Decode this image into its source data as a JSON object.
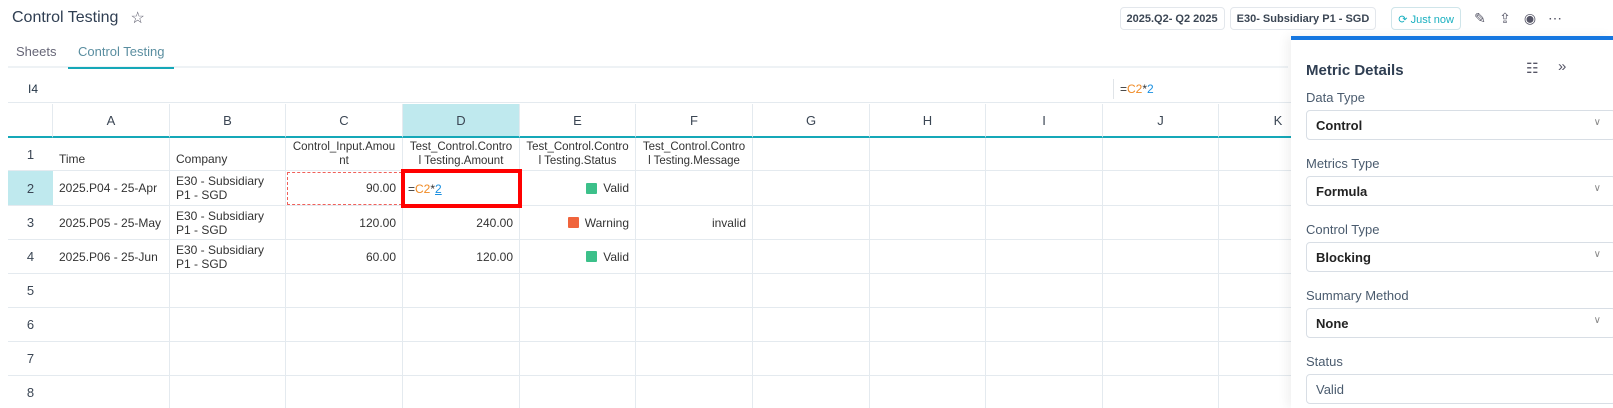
{
  "header": {
    "title": "Control Testing",
    "period": "2025.Q2- Q2 2025",
    "entity": "E30- Subsidiary P1 - SGD",
    "sync_label": "Just now"
  },
  "tabs": [
    {
      "label": "Sheets"
    },
    {
      "label": "Control Testing",
      "active": true
    }
  ],
  "formula_bar": {
    "cell_ref": "I4",
    "formula_eq": "=",
    "formula_ref": "C2",
    "formula_op": "*",
    "formula_num": "2"
  },
  "columns": [
    "A",
    "B",
    "C",
    "D",
    "E",
    "F",
    "G",
    "H",
    "I",
    "J",
    "K"
  ],
  "rows": [
    "1",
    "2",
    "3",
    "4",
    "5",
    "6",
    "7",
    "8"
  ],
  "table": {
    "headers": [
      "Time",
      "Company",
      "Control_Input.Amount",
      "Test_Control.Control Testing.Amount",
      "Test_Control.Control Testing.Status",
      "Test_Control.Control Testing.Message"
    ],
    "data": [
      {
        "time": "2025.P04 - 25-Apr",
        "company": "E30 - Subsidiary P1 - SGD",
        "input": "90.00",
        "amount": "",
        "status": "Valid",
        "message": ""
      },
      {
        "time": "2025.P05 - 25-May",
        "company": "E30 - Subsidiary P1 - SGD",
        "input": "120.00",
        "amount": "240.00",
        "status": "Warning",
        "message": "invalid"
      },
      {
        "time": "2025.P06 - 25-Jun",
        "company": "E30 - Subsidiary P1 - SGD",
        "input": "60.00",
        "amount": "120.00",
        "status": "Valid",
        "message": ""
      }
    ],
    "editing": {
      "eq": "=",
      "ref": "C2",
      "op": "*",
      "num": "2"
    }
  },
  "colors": {
    "valid": "#3cc08a",
    "warning": "#f0643c",
    "accent": "#15a8b8",
    "panel_border": "#1677e0",
    "edit_border": "#ff0000"
  },
  "panel": {
    "title": "Metric Details",
    "fields": [
      {
        "label": "Data Type",
        "value": "Control"
      },
      {
        "label": "Metrics Type",
        "value": "Formula"
      },
      {
        "label": "Control Type",
        "value": "Blocking"
      },
      {
        "label": "Summary Method",
        "value": "None"
      },
      {
        "label": "Status",
        "value": "Valid"
      }
    ]
  }
}
